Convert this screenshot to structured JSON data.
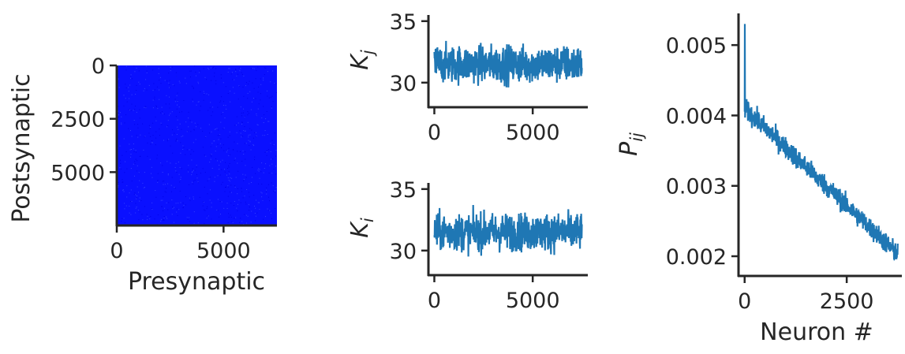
{
  "chart_data": [
    {
      "type": "heatmap",
      "xlabel": "Presynaptic",
      "ylabel": "Postsynaptic",
      "xticks": [
        0,
        5000
      ],
      "yticks": [
        0,
        2500,
        5000
      ],
      "xlim": [
        0,
        7500
      ],
      "ylim": [
        7500,
        0
      ],
      "color": "#0000ff",
      "fill_color": "#0a10ff"
    },
    {
      "type": "line",
      "ylabel": "K",
      "ylabel_sub": "j",
      "xticks": [
        0,
        5000
      ],
      "yticks": [
        30,
        35
      ],
      "xlim": [
        -300,
        7800
      ],
      "ylim": [
        28,
        35.5
      ],
      "x_range": [
        0,
        7500
      ],
      "y_mean": 31.5,
      "y_band": [
        29.0,
        34.8
      ],
      "color": "#1f77b4"
    },
    {
      "type": "line",
      "ylabel": "K",
      "ylabel_sub": "i",
      "xticks": [
        0,
        5000
      ],
      "yticks": [
        30,
        35
      ],
      "xlim": [
        -300,
        7800
      ],
      "ylim": [
        28,
        35.5
      ],
      "x_range": [
        0,
        7500
      ],
      "y_mean": 31.5,
      "y_band": [
        29.0,
        34.8
      ],
      "color": "#1f77b4"
    },
    {
      "type": "line",
      "xlabel": "Neuron #",
      "ylabel": "P",
      "ylabel_sub": "ij",
      "xticks": [
        0,
        2500
      ],
      "yticks": [
        0.002,
        0.003,
        0.004,
        0.005
      ],
      "ytick_labels": [
        "0.002",
        "0.003",
        "0.004",
        "0.005"
      ],
      "xlim": [
        -150,
        3850
      ],
      "ylim": [
        0.00172,
        0.00545
      ],
      "x_range": [
        0,
        3750
      ],
      "y_start": 0.0041,
      "y_end": 0.00203,
      "y_spike": 0.0053,
      "color": "#1f77b4"
    }
  ]
}
